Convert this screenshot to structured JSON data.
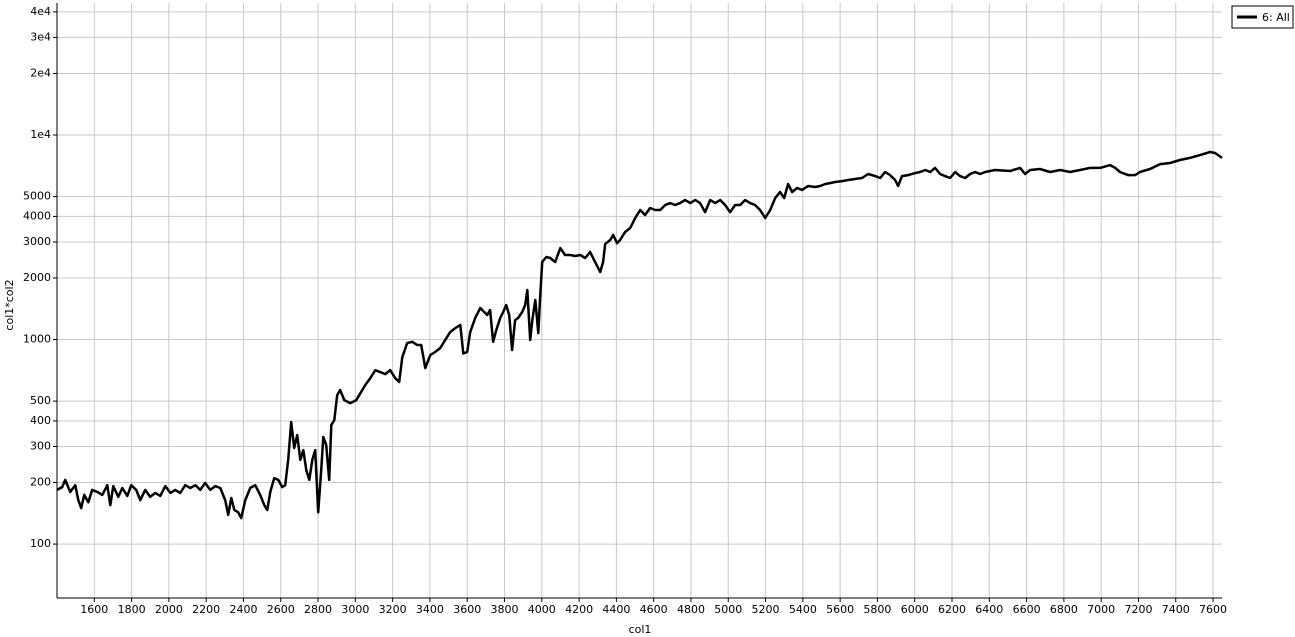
{
  "chart_data": {
    "type": "line",
    "x_label": "col1",
    "y_label": "col1*col2",
    "log_y": true,
    "grid": true,
    "legend": "top-right",
    "xlim": [
      1400,
      7648
    ],
    "ylim": [
      54.5,
      44200
    ],
    "xticks": [
      1600,
      1800,
      2000,
      2200,
      2400,
      2600,
      2800,
      3000,
      3200,
      3400,
      3600,
      3800,
      4000,
      4200,
      4400,
      4600,
      4800,
      5000,
      5200,
      5400,
      5600,
      5800,
      6000,
      6200,
      6400,
      6600,
      6800,
      7000,
      7200,
      7400,
      7600
    ],
    "yticks": [
      100,
      200,
      300,
      400,
      500,
      1000,
      2000,
      3000,
      4000,
      5000,
      {
        "value": 10000,
        "label": "1e4"
      },
      {
        "value": 20000,
        "label": "2e4"
      },
      {
        "value": 30000,
        "label": "3e4"
      },
      {
        "value": 40000,
        "label": "4e4"
      }
    ],
    "x": [
      1400,
      1428,
      1444,
      1471,
      1498,
      1514,
      1530,
      1546,
      1568,
      1589,
      1616,
      1643,
      1670,
      1686,
      1702,
      1729,
      1750,
      1777,
      1798,
      1825,
      1847,
      1873,
      1900,
      1927,
      1954,
      1981,
      2008,
      2034,
      2061,
      2088,
      2115,
      2142,
      2168,
      2195,
      2222,
      2249,
      2276,
      2302,
      2318,
      2335,
      2351,
      2372,
      2388,
      2410,
      2436,
      2463,
      2490,
      2512,
      2528,
      2544,
      2565,
      2587,
      2608,
      2624,
      2640,
      2656,
      2672,
      2688,
      2705,
      2721,
      2737,
      2753,
      2769,
      2785,
      2801,
      2817,
      2828,
      2844,
      2860,
      2871,
      2887,
      2903,
      2919,
      2941,
      2973,
      3005,
      3026,
      3053,
      3080,
      3107,
      3134,
      3160,
      3187,
      3214,
      3235,
      3252,
      3278,
      3305,
      3332,
      3353,
      3375,
      3402,
      3428,
      3455,
      3482,
      3509,
      3536,
      3563,
      3579,
      3600,
      3616,
      3643,
      3670,
      3691,
      3707,
      3723,
      3739,
      3756,
      3777,
      3793,
      3809,
      3825,
      3841,
      3857,
      3873,
      3895,
      3911,
      3922,
      3938,
      3949,
      3965,
      3981,
      3991,
      4002,
      4024,
      4045,
      4072,
      4099,
      4125,
      4152,
      4179,
      4206,
      4233,
      4259,
      4286,
      4313,
      4329,
      4340,
      4367,
      4383,
      4404,
      4420,
      4447,
      4474,
      4501,
      4528,
      4554,
      4581,
      4608,
      4635,
      4662,
      4689,
      4715,
      4742,
      4769,
      4796,
      4823,
      4849,
      4876,
      4903,
      4930,
      4957,
      4983,
      5010,
      5037,
      5064,
      5091,
      5117,
      5144,
      5171,
      5198,
      5225,
      5252,
      5278,
      5300,
      5321,
      5343,
      5369,
      5396,
      5428,
      5466,
      5493,
      5520,
      5546,
      5573,
      5611,
      5643,
      5680,
      5718,
      5750,
      5788,
      5815,
      5841,
      5868,
      5895,
      5911,
      5932,
      5965,
      6002,
      6029,
      6056,
      6083,
      6109,
      6136,
      6163,
      6190,
      6217,
      6243,
      6270,
      6297,
      6324,
      6351,
      6378,
      6431,
      6512,
      6565,
      6592,
      6619,
      6672,
      6726,
      6780,
      6833,
      6887,
      6941,
      6994,
      7048,
      7075,
      7101,
      7144,
      7182,
      7208,
      7262,
      7316,
      7369,
      7423,
      7476,
      7530,
      7584,
      7611,
      7648
    ],
    "series": [
      {
        "name": "6: All",
        "color": "#000000",
        "values": [
          184,
          190,
          206,
          180,
          194,
          164,
          150,
          174,
          160,
          184,
          180,
          174,
          194,
          155,
          192,
          170,
          188,
          172,
          194,
          184,
          164,
          184,
          170,
          178,
          172,
          192,
          178,
          184,
          178,
          194,
          188,
          194,
          184,
          199,
          184,
          192,
          188,
          164,
          139,
          168,
          147,
          143,
          134,
          164,
          188,
          194,
          174,
          155,
          147,
          180,
          210,
          206,
          190,
          194,
          258,
          395,
          295,
          341,
          258,
          288,
          230,
          206,
          258,
          288,
          143,
          230,
          334,
          305,
          206,
          382,
          404,
          535,
          566,
          506,
          489,
          506,
          545,
          599,
          648,
          709,
          693,
          678,
          709,
          648,
          620,
          821,
          961,
          975,
          940,
          940,
          726,
          840,
          869,
          908,
          995,
          1088,
          1138,
          1178,
          855,
          869,
          1088,
          1274,
          1426,
          1363,
          1318,
          1394,
          975,
          1113,
          1274,
          1363,
          1476,
          1318,
          889,
          1245,
          1274,
          1363,
          1476,
          1746,
          995,
          1245,
          1560,
          1075,
          1596,
          2393,
          2532,
          2504,
          2393,
          2801,
          2589,
          2589,
          2560,
          2589,
          2504,
          2679,
          2393,
          2138,
          2393,
          2931,
          3066,
          3243,
          2960,
          3066,
          3357,
          3509,
          3928,
          4297,
          4063,
          4396,
          4297,
          4297,
          4549,
          4648,
          4549,
          4648,
          4810,
          4648,
          4810,
          4648,
          4200,
          4810,
          4648,
          4810,
          4549,
          4200,
          4549,
          4549,
          4810,
          4648,
          4549,
          4297,
          3928,
          4297,
          4922,
          5266,
          4922,
          5758,
          5266,
          5508,
          5388,
          5632,
          5570,
          5632,
          5758,
          5820,
          5890,
          5955,
          6024,
          6095,
          6165,
          6445,
          6300,
          6165,
          6592,
          6368,
          6024,
          5632,
          6300,
          6368,
          6515,
          6592,
          6745,
          6592,
          6902,
          6445,
          6300,
          6165,
          6592,
          6300,
          6165,
          6445,
          6592,
          6445,
          6592,
          6745,
          6670,
          6902,
          6445,
          6745,
          6820,
          6592,
          6745,
          6592,
          6745,
          6902,
          6902,
          7129,
          6902,
          6592,
          6368,
          6368,
          6592,
          6820,
          7210,
          7295,
          7551,
          7727,
          7980,
          8260,
          8170,
          7727
        ]
      }
    ]
  }
}
